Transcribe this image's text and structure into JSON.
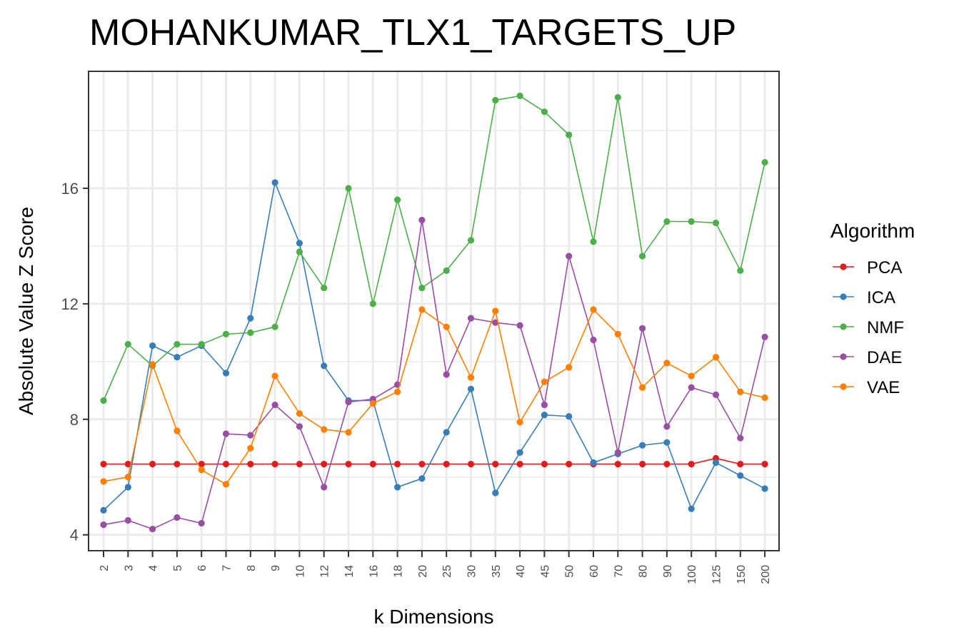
{
  "chart_data": {
    "type": "line",
    "title": "MOHANKUMAR_TLX1_TARGETS_UP",
    "xlabel": "k Dimensions",
    "ylabel": "Absolute Value Z Score",
    "categories": [
      "2",
      "3",
      "4",
      "5",
      "6",
      "7",
      "8",
      "9",
      "10",
      "12",
      "14",
      "16",
      "18",
      "20",
      "25",
      "30",
      "35",
      "40",
      "45",
      "50",
      "60",
      "70",
      "80",
      "90",
      "100",
      "125",
      "150",
      "200"
    ],
    "yticks": [
      4,
      8,
      12,
      16
    ],
    "ylim": [
      3.45,
      20.05
    ],
    "grid": true,
    "legend": {
      "title": "Algorithm",
      "position": "right"
    },
    "series": [
      {
        "name": "PCA",
        "color": "#e41a1c",
        "values": [
          6.45,
          6.45,
          6.45,
          6.45,
          6.45,
          6.45,
          6.45,
          6.45,
          6.45,
          6.45,
          6.45,
          6.45,
          6.45,
          6.45,
          6.45,
          6.45,
          6.45,
          6.45,
          6.45,
          6.45,
          6.45,
          6.45,
          6.45,
          6.45,
          6.45,
          6.65,
          6.45,
          6.45
        ]
      },
      {
        "name": "ICA",
        "color": "#377eb8",
        "values": [
          4.85,
          5.65,
          10.55,
          10.15,
          10.55,
          9.6,
          11.5,
          16.2,
          14.1,
          9.85,
          8.65,
          8.65,
          5.65,
          5.95,
          7.55,
          9.05,
          5.45,
          6.85,
          8.15,
          8.1,
          6.5,
          6.8,
          7.1,
          7.2,
          4.9,
          6.5,
          6.05,
          5.6
        ]
      },
      {
        "name": "NMF",
        "color": "#4daf4a",
        "values": [
          8.65,
          10.6,
          9.85,
          10.6,
          10.6,
          10.95,
          11.0,
          11.2,
          13.8,
          12.55,
          16.0,
          12.0,
          15.6,
          12.55,
          13.15,
          14.2,
          19.05,
          19.2,
          18.65,
          17.85,
          14.15,
          19.15,
          13.65,
          14.85,
          14.85,
          14.8,
          13.15,
          16.9
        ]
      },
      {
        "name": "DAE",
        "color": "#984ea3",
        "values": [
          4.35,
          4.5,
          4.2,
          4.6,
          4.4,
          7.5,
          7.45,
          8.5,
          7.75,
          5.65,
          8.6,
          8.7,
          9.2,
          14.9,
          9.55,
          11.5,
          11.35,
          11.25,
          8.5,
          13.65,
          10.75,
          6.85,
          11.15,
          7.75,
          9.1,
          8.85,
          7.35,
          10.85
        ]
      },
      {
        "name": "VAE",
        "color": "#ff7f00",
        "values": [
          5.85,
          6.0,
          9.9,
          7.6,
          6.25,
          5.75,
          7.0,
          9.5,
          8.2,
          7.65,
          7.55,
          8.55,
          8.95,
          11.8,
          11.2,
          9.45,
          11.75,
          7.9,
          9.3,
          9.8,
          11.8,
          10.95,
          9.1,
          9.95,
          9.5,
          10.15,
          8.95,
          8.75
        ]
      }
    ]
  }
}
